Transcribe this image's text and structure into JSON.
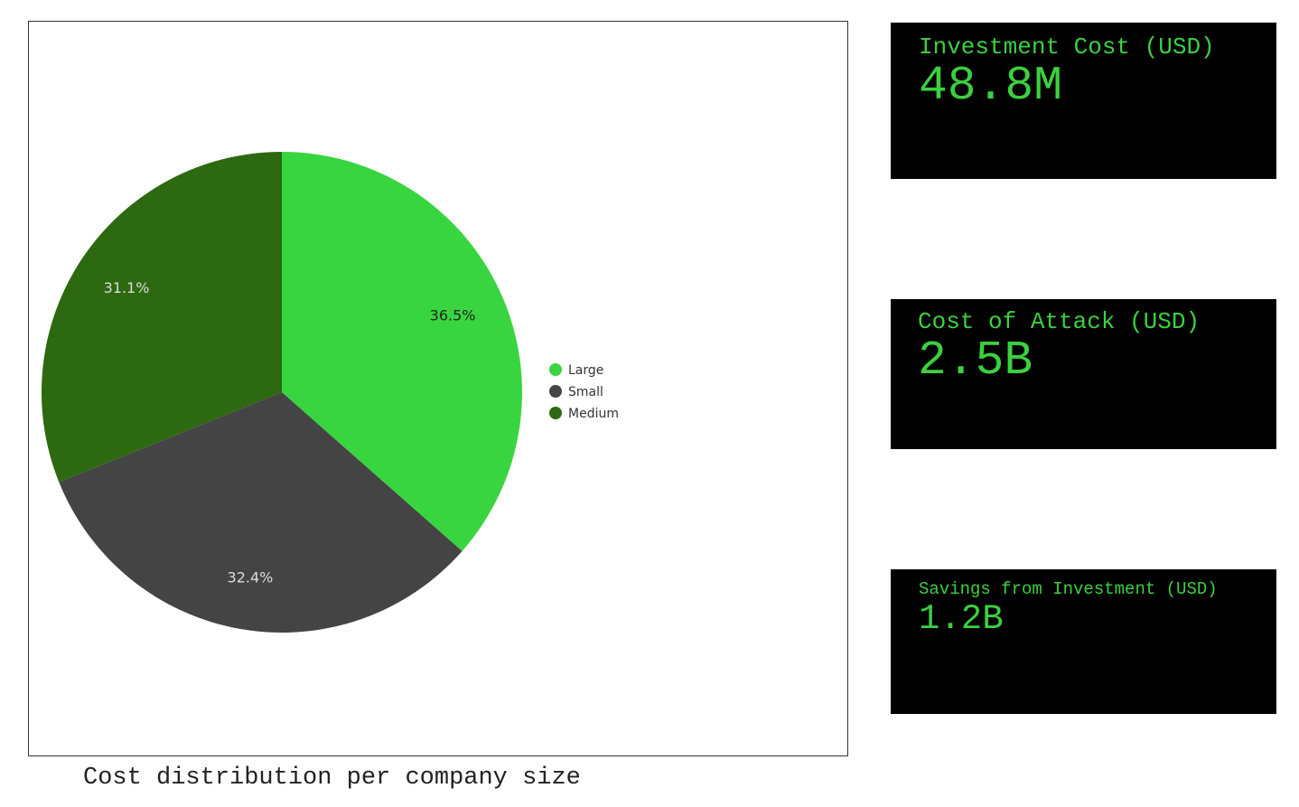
{
  "chart_data": {
    "type": "pie",
    "categories": [
      "Large",
      "Small",
      "Medium"
    ],
    "values": [
      36.5,
      32.4,
      31.1
    ],
    "labels": [
      "36.5%",
      "32.4%",
      "31.1%"
    ],
    "colors": [
      "#39d540",
      "#444444",
      "#2d6910"
    ],
    "label_colors": [
      "#222222",
      "#dddddd",
      "#dddddd"
    ],
    "legend": [
      "Large",
      "Small",
      "Medium"
    ],
    "legend_position": "right",
    "title": "Cost distribution per company size"
  },
  "kpis": {
    "investment": {
      "label": "Investment Cost (USD)",
      "value": "48.8M"
    },
    "attack": {
      "label": "Cost of Attack (USD)",
      "value": "2.5B"
    },
    "savings": {
      "label": "Savings from Investment (USD)",
      "value": "1.2B"
    }
  },
  "colors": {
    "kpi_text": "#3bd03f",
    "kpi_background": "#000000"
  }
}
